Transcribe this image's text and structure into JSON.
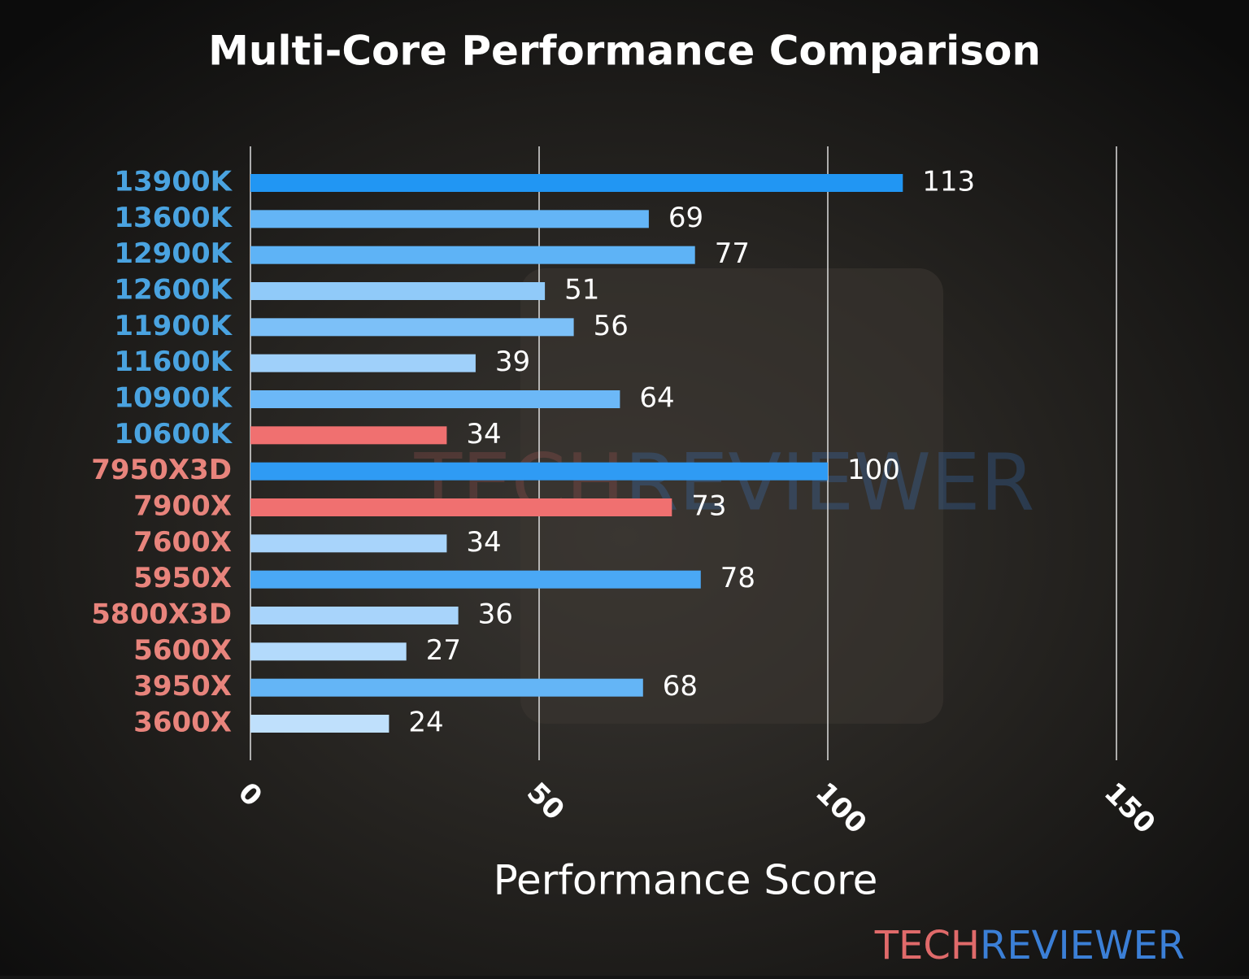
{
  "chart_data": {
    "type": "bar",
    "orientation": "horizontal",
    "title": "Multi-Core Performance Comparison",
    "x_label": "Performance Score",
    "categories": [
      "13900K",
      "13600K",
      "12900K",
      "12600K",
      "11900K",
      "11600K",
      "10900K",
      "10600K",
      "7950X3D",
      "7900X",
      "7600X",
      "5950X",
      "5800X3D",
      "5600X",
      "3950X",
      "3600X"
    ],
    "category_colors": [
      "#4aa3e0",
      "#4aa3e0",
      "#4aa3e0",
      "#4aa3e0",
      "#4aa3e0",
      "#4aa3e0",
      "#4aa3e0",
      "#4aa3e0",
      "#e8847c",
      "#e8847c",
      "#e8847c",
      "#e8847c",
      "#e8847c",
      "#e8847c",
      "#e8847c",
      "#e8847c"
    ],
    "values": [
      113,
      69,
      77,
      51,
      56,
      39,
      64,
      34,
      100,
      73,
      34,
      78,
      36,
      27,
      68,
      24
    ],
    "colors": [
      "#2196f3",
      "#64b5f6",
      "#5eb3f6",
      "#90caf9",
      "#7cc0f8",
      "#9fd0fa",
      "#6cb8f7",
      "#f07070",
      "#2f9bf4",
      "#f07070",
      "#a8d4fb",
      "#4aa8f5",
      "#a8d4fb",
      "#b3dafc",
      "#64b5f6",
      "#bfe0fc"
    ],
    "xlim": [
      0,
      150
    ],
    "xticks": [
      0,
      50,
      100,
      150
    ],
    "grid": true,
    "watermark": {
      "left": "TECH",
      "right": "REVIEWER"
    }
  }
}
